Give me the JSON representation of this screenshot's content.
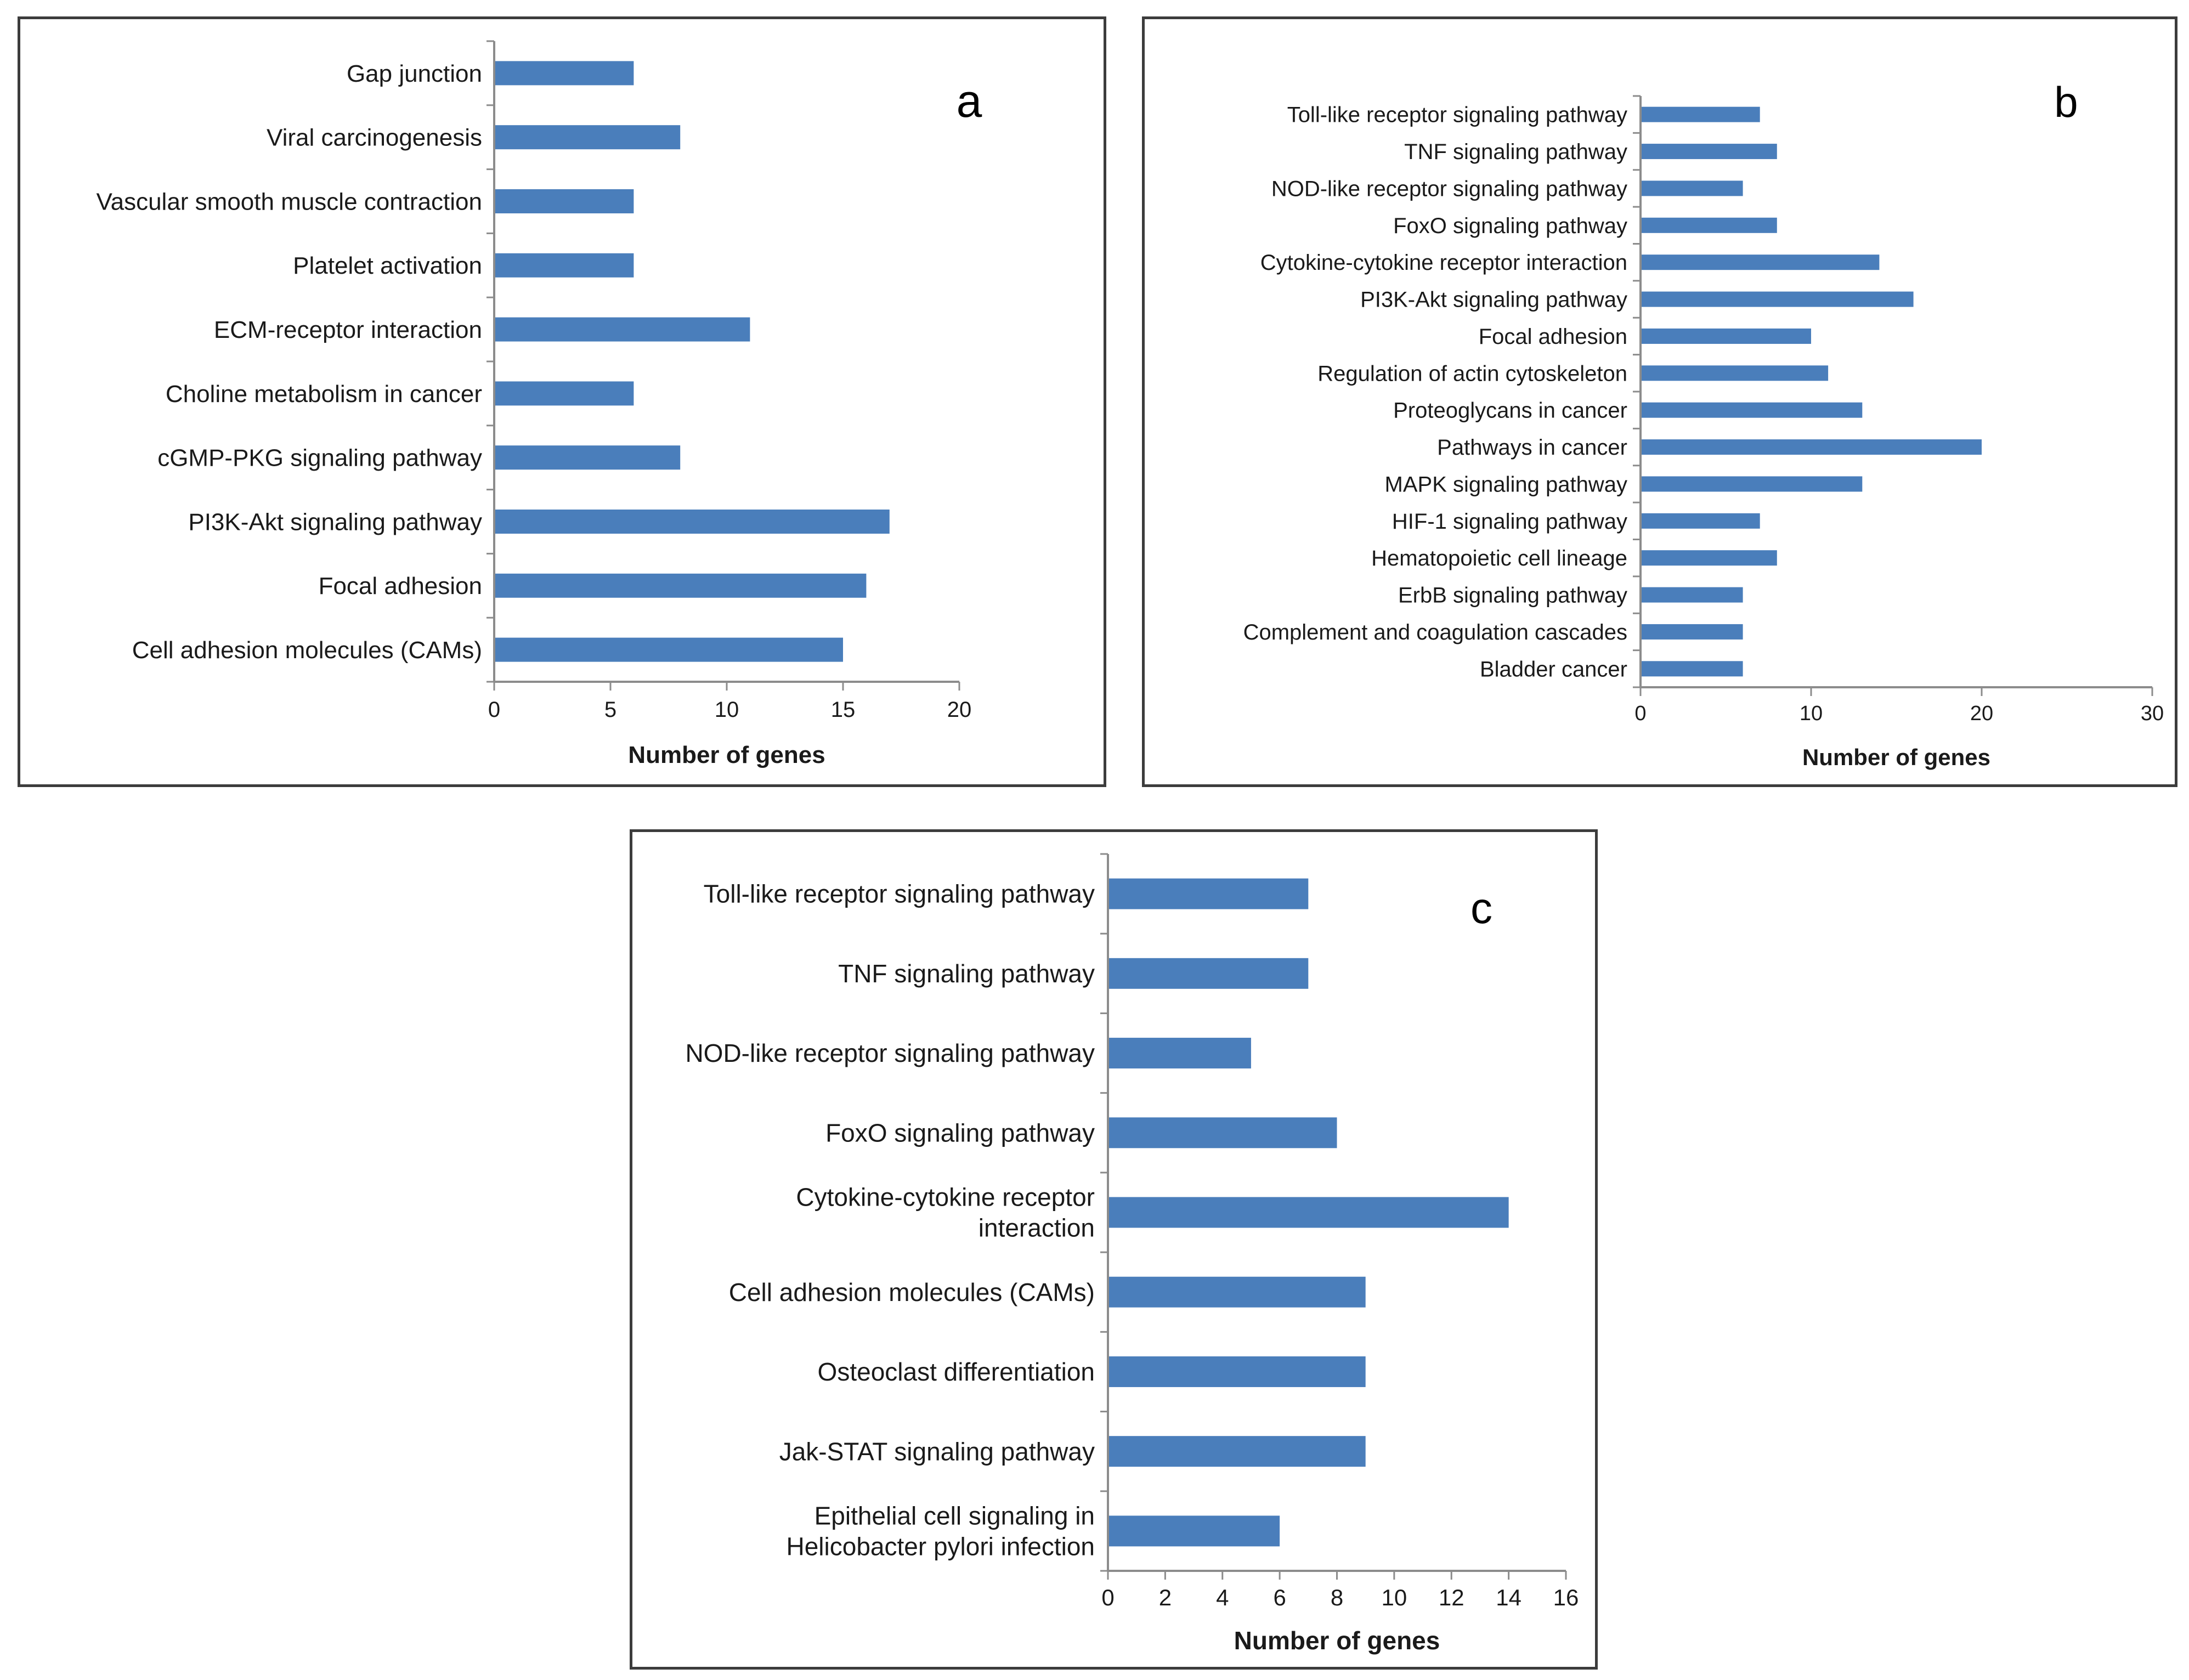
{
  "bar_color": "#4a7ebb",
  "axis_color": "#8c8c8c",
  "chart_data": [
    {
      "type": "bar",
      "orientation": "horizontal",
      "panel_label": "a",
      "title": "",
      "xlabel": "Number of genes",
      "ylabel": "",
      "xlim": [
        0,
        20
      ],
      "ticks": [
        0,
        5,
        10,
        15,
        20
      ],
      "categories": [
        "Gap junction",
        "Viral carcinogenesis",
        "Vascular smooth muscle contraction",
        "Platelet activation",
        "ECM-receptor interaction",
        "Choline metabolism in cancer",
        "cGMP-PKG signaling pathway",
        "PI3K-Akt signaling pathway",
        "Focal adhesion",
        "Cell adhesion molecules (CAMs)"
      ],
      "values": [
        6,
        8,
        6,
        6,
        11,
        6,
        8,
        17,
        16,
        15
      ]
    },
    {
      "type": "bar",
      "orientation": "horizontal",
      "panel_label": "b",
      "title": "",
      "xlabel": "Number of genes",
      "ylabel": "",
      "xlim": [
        0,
        30
      ],
      "ticks": [
        0,
        10,
        20,
        30
      ],
      "categories": [
        "Toll-like receptor signaling pathway",
        "TNF signaling pathway",
        "NOD-like receptor signaling pathway",
        "FoxO signaling pathway",
        "Cytokine-cytokine receptor interaction",
        "PI3K-Akt signaling pathway",
        "Focal adhesion",
        "Regulation of actin cytoskeleton",
        "Proteoglycans in cancer",
        "Pathways in cancer",
        "MAPK signaling pathway",
        "HIF-1 signaling pathway",
        "Hematopoietic cell lineage",
        "ErbB signaling pathway",
        "Complement and coagulation cascades",
        "Bladder cancer"
      ],
      "values": [
        7,
        8,
        6,
        8,
        14,
        16,
        10,
        11,
        13,
        20,
        13,
        7,
        8,
        6,
        6,
        6
      ]
    },
    {
      "type": "bar",
      "orientation": "horizontal",
      "panel_label": "c",
      "title": "",
      "xlabel": "Number of genes",
      "ylabel": "",
      "xlim": [
        0,
        16
      ],
      "ticks": [
        0,
        2,
        4,
        6,
        8,
        10,
        12,
        14,
        16
      ],
      "categories": [
        "Toll-like receptor signaling pathway",
        "TNF signaling pathway",
        "NOD-like receptor signaling pathway",
        "FoxO signaling pathway",
        "Cytokine-cytokine receptor interaction",
        "Cell adhesion molecules (CAMs)",
        "Osteoclast differentiation",
        "Jak-STAT signaling pathway",
        "Epithelial cell signaling in Helicobacter pylori infection"
      ],
      "category_lines": [
        [
          "Toll-like receptor signaling pathway"
        ],
        [
          "TNF signaling pathway"
        ],
        [
          "NOD-like receptor signaling pathway"
        ],
        [
          "FoxO signaling pathway"
        ],
        [
          "Cytokine-cytokine receptor",
          "interaction"
        ],
        [
          "Cell adhesion molecules (CAMs)"
        ],
        [
          "Osteoclast differentiation"
        ],
        [
          "Jak-STAT signaling pathway"
        ],
        [
          "Epithelial cell signaling in",
          "Helicobacter pylori infection"
        ]
      ],
      "values": [
        7,
        7,
        5,
        8,
        14,
        9,
        9,
        9,
        6
      ]
    }
  ]
}
